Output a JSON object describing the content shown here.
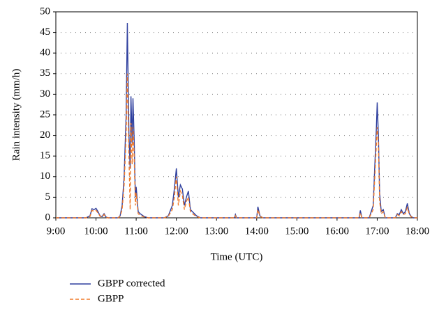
{
  "chart_data": {
    "type": "line",
    "xlabel": "Time (UTC)",
    "ylabel": "Rain intensity (mm/h)",
    "x": [
      9.0,
      9.75,
      9.85,
      9.9,
      9.95,
      10.0,
      10.05,
      10.1,
      10.15,
      10.2,
      10.25,
      10.3,
      10.55,
      10.6,
      10.65,
      10.7,
      10.75,
      10.78,
      10.82,
      10.85,
      10.87,
      10.9,
      10.92,
      10.95,
      10.98,
      11.0,
      11.05,
      11.1,
      11.2,
      11.3,
      11.7,
      11.8,
      11.9,
      11.95,
      12.0,
      12.05,
      12.1,
      12.15,
      12.2,
      12.25,
      12.3,
      12.35,
      12.4,
      12.5,
      12.6,
      13.45,
      13.47,
      13.5,
      14.0,
      14.03,
      14.08,
      14.15,
      16.55,
      16.58,
      16.62,
      16.8,
      16.9,
      16.95,
      16.98,
      17.0,
      17.03,
      17.06,
      17.1,
      17.15,
      17.2,
      17.45,
      17.5,
      17.55,
      17.6,
      17.65,
      17.7,
      17.75,
      17.8,
      17.85,
      17.9,
      18.0
    ],
    "series": [
      {
        "name": "GBPP corrected",
        "color": "#2e3f9e",
        "dashed": false,
        "values": [
          0,
          0,
          0.5,
          2.2,
          2.0,
          2.3,
          1.5,
          0.5,
          0.3,
          1.0,
          0.2,
          0,
          0,
          0.5,
          3,
          10,
          25,
          47.3,
          20,
          12,
          29.5,
          18,
          29,
          19,
          5,
          7.5,
          1.5,
          1,
          0.3,
          0,
          0,
          0.5,
          3,
          7,
          12,
          5,
          8,
          7,
          3,
          5,
          6.5,
          2,
          1.5,
          0.5,
          0,
          0,
          0.8,
          0,
          0,
          2.7,
          0.5,
          0,
          0,
          1.8,
          0,
          0,
          3,
          15,
          22,
          28,
          20,
          6,
          1.5,
          2,
          0,
          0,
          1,
          0.8,
          2,
          1,
          1.5,
          3.5,
          1,
          0.3,
          0,
          0
        ]
      },
      {
        "name": "GBPP",
        "color": "#f07a2a",
        "dashed": true,
        "values": [
          0,
          0,
          0.3,
          1.8,
          1.6,
          1.8,
          1.2,
          0.4,
          0.2,
          0.8,
          0.1,
          0,
          0,
          0.4,
          2,
          8,
          20,
          35,
          15,
          2,
          23,
          13,
          22,
          15,
          3,
          6,
          1,
          0.6,
          0.2,
          0,
          0,
          0.4,
          2,
          5,
          10,
          3,
          6.5,
          5.5,
          2,
          4,
          5,
          1.5,
          1,
          0.3,
          0,
          0,
          0.5,
          0,
          0,
          2,
          0.4,
          0,
          0,
          1.2,
          0,
          0,
          2,
          12,
          18,
          22,
          18,
          4,
          1,
          1.5,
          0,
          0,
          0.8,
          0.5,
          1.5,
          0.8,
          1,
          2.5,
          0.8,
          0.2,
          0,
          0
        ]
      }
    ],
    "xlim": [
      9,
      18
    ],
    "xticks": [
      {
        "value": 9,
        "label": "9:00"
      },
      {
        "value": 10,
        "label": "10:00"
      },
      {
        "value": 11,
        "label": "11:00"
      },
      {
        "value": 12,
        "label": "12:00"
      },
      {
        "value": 13,
        "label": "13:00"
      },
      {
        "value": 14,
        "label": "14:00"
      },
      {
        "value": 15,
        "label": "15:00"
      },
      {
        "value": 16,
        "label": "16:00"
      },
      {
        "value": 17,
        "label": "17:00"
      },
      {
        "value": 18,
        "label": "18:00"
      }
    ],
    "ylim": [
      0,
      50
    ],
    "yticks": [
      0,
      5,
      10,
      15,
      20,
      25,
      30,
      35,
      40,
      45,
      50
    ],
    "grid": true,
    "legend": "bottom-left"
  }
}
